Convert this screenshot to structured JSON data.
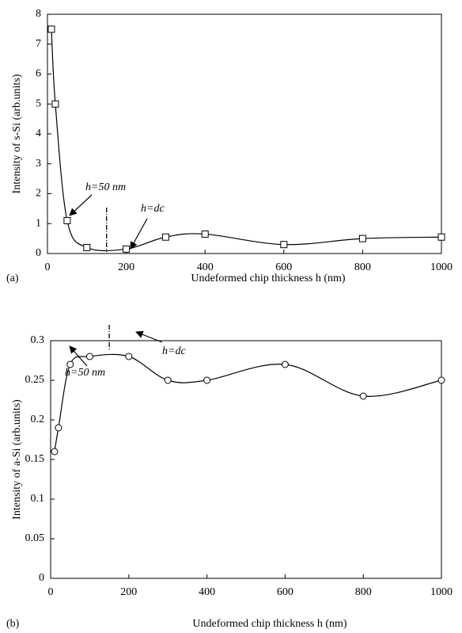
{
  "chart_data": [
    {
      "type": "line",
      "panel": "(a)",
      "ylabel": "Intensity of s-Si  (arb.units)",
      "xlabel": "Undeformed chip thickness h  (nm)",
      "annotations": [
        "h=50 nm",
        "h=dc"
      ],
      "x": [
        10,
        20,
        50,
        100,
        200,
        300,
        400,
        600,
        800,
        1000
      ],
      "series": [
        {
          "color": "#000000",
          "marker": "square",
          "values": [
            7.5,
            5.0,
            1.1,
            0.2,
            0.15,
            0.55,
            0.65,
            0.3,
            0.5,
            0.55
          ]
        }
      ],
      "xlim": [
        0,
        1000
      ],
      "xticks": [
        0,
        200,
        400,
        600,
        800,
        1000
      ],
      "ylim": [
        0,
        8
      ],
      "yticks": [
        0,
        1,
        2,
        3,
        4,
        5,
        6,
        7,
        8
      ]
    },
    {
      "type": "line",
      "panel": "(b)",
      "ylabel": "Intensity of a-Si  (arb.units)",
      "xlabel": "Undeformed chip thickness h  (nm)",
      "annotations": [
        "h=50 nm",
        "h=dc"
      ],
      "x": [
        10,
        20,
        50,
        100,
        200,
        300,
        400,
        600,
        800,
        1000
      ],
      "series": [
        {
          "color": "#000000",
          "marker": "circle",
          "values": [
            0.16,
            0.19,
            0.27,
            0.28,
            0.28,
            0.25,
            0.25,
            0.27,
            0.23,
            0.25
          ]
        }
      ],
      "xlim": [
        0,
        1000
      ],
      "xticks": [
        0,
        200,
        400,
        600,
        800,
        1000
      ],
      "ylim": [
        0,
        0.3
      ],
      "yticks": [
        0,
        0.05,
        0.1,
        0.15,
        0.2,
        0.25,
        0.3
      ]
    }
  ]
}
